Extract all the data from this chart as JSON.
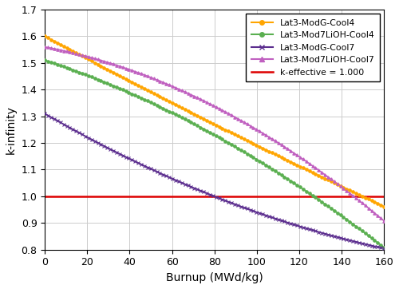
{
  "xlabel": "Burnup (MWd/kg)",
  "ylabel": "k-infinity",
  "xlim": [
    0,
    160
  ],
  "ylim": [
    0.8,
    1.7
  ],
  "yticks": [
    0.8,
    0.9,
    1.0,
    1.1,
    1.2,
    1.3,
    1.4,
    1.5,
    1.6,
    1.7
  ],
  "xticks": [
    0,
    20,
    40,
    60,
    80,
    100,
    120,
    140,
    160
  ],
  "series": [
    {
      "label": "Lat3-ModG-Cool4",
      "color": "#FFA500",
      "marker": "o",
      "marker_size": 2.5,
      "curve_params": [
        1.6,
        -0.682,
        0.044,
        0.0
      ]
    },
    {
      "label": "Lat3-Mod7LiOH-Cool4",
      "color": "#5AAF50",
      "marker": "o",
      "marker_size": 2.5,
      "curve_params": [
        1.51,
        -0.418,
        -0.284,
        0.0
      ]
    },
    {
      "label": "Lat3-ModG-Cool7",
      "color": "#5B2D8E",
      "marker": "x",
      "marker_size": 3.0,
      "curve_params": [
        1.31,
        -0.735,
        0.23,
        0.0
      ]
    },
    {
      "label": "Lat3-Mod7LiOH-Cool7",
      "color": "#C060C0",
      "marker": "^",
      "marker_size": 2.5,
      "curve_params": [
        1.56,
        -0.237,
        -0.415,
        0.0
      ]
    }
  ],
  "keff_line": {
    "value": 1.0,
    "color": "#DD0000",
    "label": "k-effective = 1.000"
  },
  "background_color": "#ffffff",
  "grid_color": "#cccccc"
}
